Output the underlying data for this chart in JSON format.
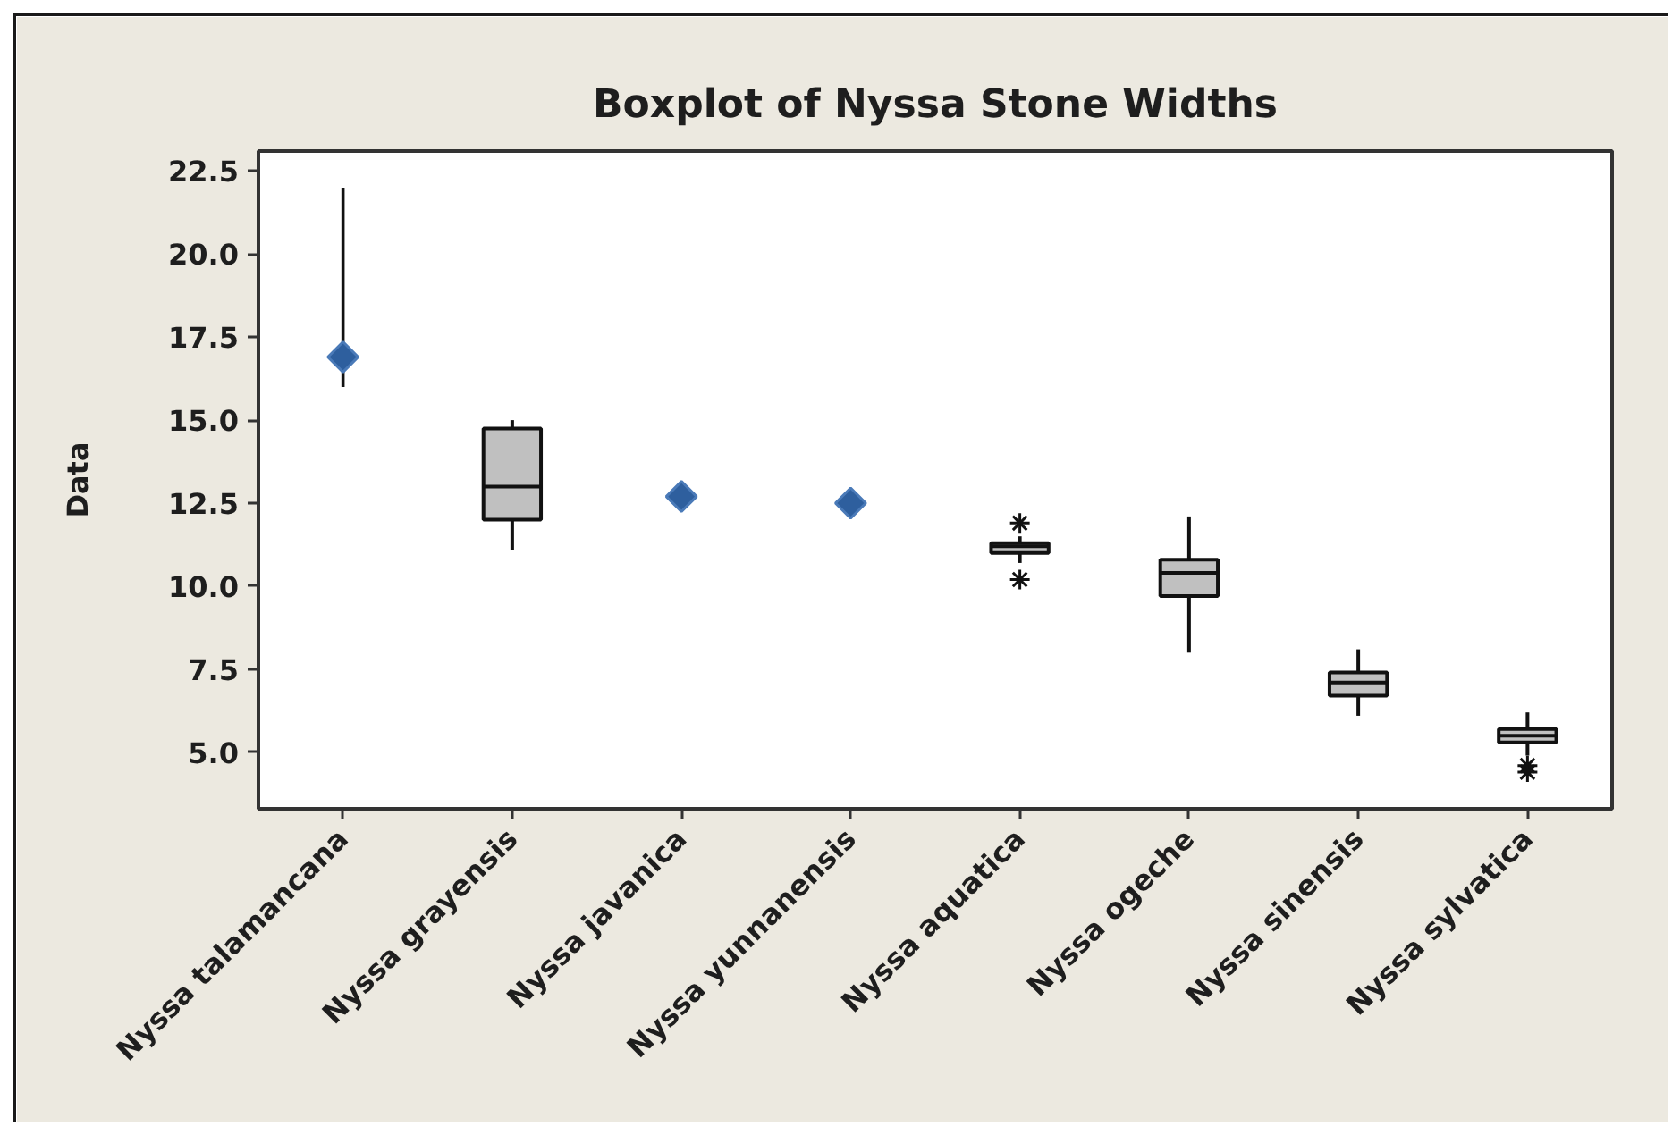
{
  "chart_data": {
    "type": "box",
    "title": "Boxplot of Nyssa Stone Widths",
    "ylabel": "Data",
    "categories": [
      "Nyssa talamancana",
      "Nyssa grayensis",
      "Nyssa javanica",
      "Nyssa yunnanensis",
      "Nyssa aquatica",
      "Nyssa ogeche",
      "Nyssa sinensis",
      "Nyssa sylvatica"
    ],
    "ylim": [
      3.3,
      23.1
    ],
    "yticks": [
      {
        "value": 5,
        "label": "5.0"
      },
      7.5,
      {
        "value": 10,
        "label": "10.0"
      },
      12.5,
      {
        "value": 15,
        "label": "15.0"
      },
      17.5,
      {
        "value": 20,
        "label": "20.0"
      },
      22.5
    ],
    "grid": false,
    "series": [
      {
        "color": "#c0c0c0",
        "boxes": [
          null,
          {
            "low": 11.1,
            "q1": 12.0,
            "median": 13.0,
            "q3": 14.75,
            "high": 15.0
          },
          null,
          null,
          {
            "low": 10.7,
            "q1": 11.0,
            "median": 11.2,
            "q3": 11.3,
            "high": 11.5,
            "outliers": [
              11.9,
              10.2
            ]
          },
          {
            "low": 8.0,
            "q1": 9.7,
            "median": 10.4,
            "q3": 10.8,
            "high": 12.1
          },
          {
            "low": 6.1,
            "q1": 6.7,
            "median": 7.1,
            "q3": 7.4,
            "high": 8.1
          },
          {
            "low": 4.9,
            "q1": 5.3,
            "median": 5.5,
            "q3": 5.7,
            "high": 6.2,
            "outliers": [
              4.6,
              4.4
            ]
          }
        ]
      },
      {
        "type": "scatter",
        "marker": "diamond",
        "color": "#2e5f9e",
        "x": [
          "Nyssa talamancana",
          "Nyssa javanica",
          "Nyssa yunnanensis"
        ],
        "values": [
          16.9,
          12.7,
          12.5
        ],
        "errors": [
          [
            16.0,
            22.0
          ],
          null,
          null
        ]
      }
    ]
  }
}
